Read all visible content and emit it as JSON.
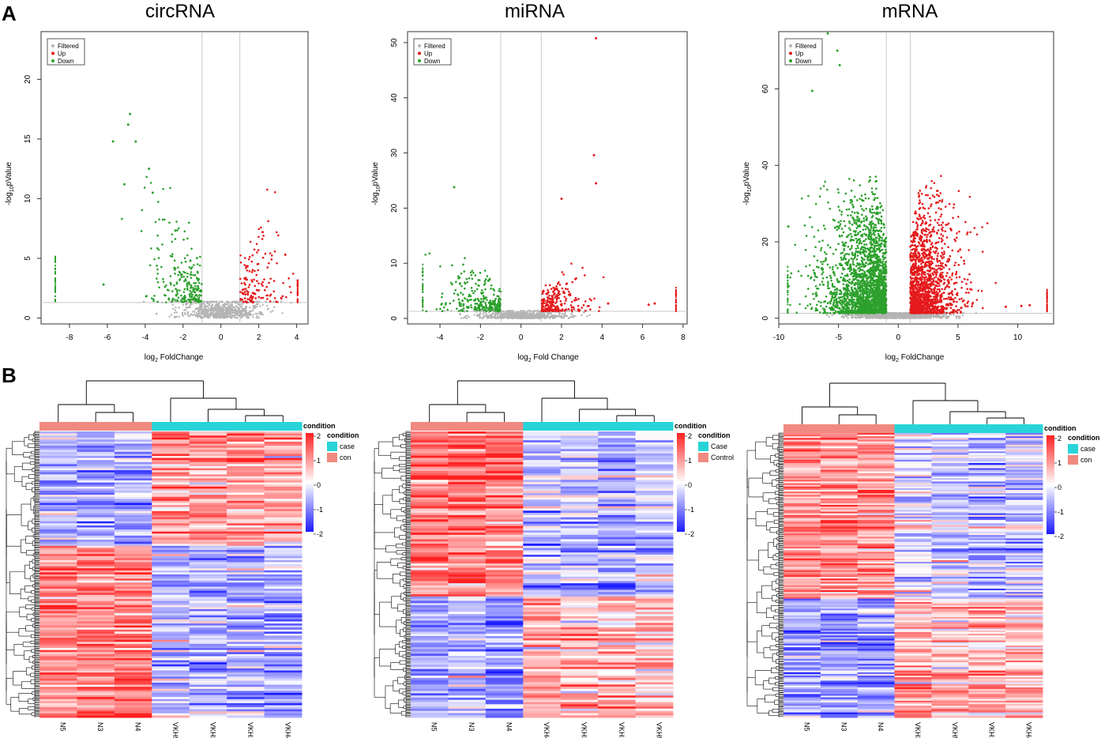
{
  "panel_labels": {
    "a": "A",
    "b": "B"
  },
  "colors": {
    "filtered": "#b4b4b4",
    "up": "#e41a1c",
    "down": "#2ca02c",
    "axis": "#333333",
    "guide": "#c8c8c8",
    "heat_high": "#ff2020",
    "heat_mid": "#ffffff",
    "heat_low": "#1a1aff",
    "case": "#28d4d8",
    "con": "#f08a80"
  },
  "chart_data": [
    {
      "type": "scatter",
      "panel": "A",
      "title": "circRNA",
      "xlabel_pre": "log",
      "xlabel_sub": "2",
      "xlabel_post": " FoldChange",
      "ylabel_pre": "-log",
      "ylabel_sub": "10",
      "ylabel_post": "pValue",
      "xlim": [
        -9.5,
        4.6
      ],
      "ylim": [
        -0.5,
        24
      ],
      "xticks": [
        -8,
        -6,
        -4,
        -2,
        0,
        2,
        4
      ],
      "yticks": [
        0,
        5,
        10,
        15,
        20
      ],
      "fc_cutoff": [
        -1,
        1
      ],
      "p_cutoff": 1.3,
      "legend": [
        "Filtered",
        "Up",
        "Down"
      ],
      "n_down": 230,
      "n_up": 140,
      "n_filtered": 700,
      "notable_points": [
        [
          -4.8,
          17.1
        ],
        [
          -5.7,
          14.8
        ],
        [
          -4.5,
          14.8
        ],
        [
          -4.9,
          16.2
        ],
        [
          -3.8,
          12.5
        ],
        [
          -3.6,
          10.5
        ],
        [
          -5.1,
          11.2
        ],
        [
          2.2,
          7.2
        ],
        [
          3.4,
          5.3
        ],
        [
          -6.2,
          2.8
        ]
      ]
    },
    {
      "type": "scatter",
      "panel": "A",
      "title": "miRNA",
      "xlabel_pre": "log",
      "xlabel_sub": "2",
      "xlabel_post": " Fold Change",
      "ylabel_pre": "-log",
      "ylabel_sub": "10",
      "ylabel_post": "pValue",
      "xlim": [
        -5.6,
        8.2
      ],
      "ylim": [
        -1,
        52
      ],
      "xticks": [
        -4,
        -2,
        0,
        2,
        4,
        6,
        8
      ],
      "yticks": [
        0,
        10,
        20,
        30,
        40,
        50
      ],
      "fc_cutoff": [
        -1,
        1
      ],
      "p_cutoff": 1.3,
      "legend": [
        "Filtered",
        "Up",
        "Down"
      ],
      "n_down": 260,
      "n_up": 230,
      "n_filtered": 700,
      "notable_points": [
        [
          3.7,
          50.8
        ],
        [
          3.6,
          29.6
        ],
        [
          3.7,
          24.5
        ],
        [
          2.0,
          21.7
        ],
        [
          -3.3,
          23.8
        ],
        [
          4.3,
          2.7
        ],
        [
          6.3,
          2.5
        ],
        [
          6.6,
          2.7
        ]
      ]
    },
    {
      "type": "scatter",
      "panel": "A",
      "title": "mRNA",
      "xlabel_pre": "log",
      "xlabel_sub": "2",
      "xlabel_post": " FoldChange",
      "ylabel_pre": "-log",
      "ylabel_sub": "10",
      "ylabel_post": "pValue",
      "xlim": [
        -10,
        13
      ],
      "ylim": [
        -1.5,
        75
      ],
      "xticks": [
        -10,
        -5,
        0,
        5,
        10
      ],
      "yticks": [
        0,
        20,
        40,
        60
      ],
      "fc_cutoff": [
        -1,
        1
      ],
      "p_cutoff": 1.3,
      "legend": [
        "Filtered",
        "Up",
        "Down"
      ],
      "n_down": 2200,
      "n_up": 1500,
      "n_filtered": 1500,
      "notable_points": [
        [
          -5.9,
          74.5
        ],
        [
          -5.1,
          70.0
        ],
        [
          -9.2,
          24.0
        ],
        [
          -4.9,
          66.2
        ],
        [
          -7.2,
          59.5
        ],
        [
          3.4,
          32.0
        ],
        [
          9.0,
          3.0
        ],
        [
          10.3,
          3.2
        ],
        [
          11.0,
          3.4
        ]
      ]
    },
    {
      "type": "heatmap",
      "panel": "B",
      "columns": [
        "N5",
        "N3",
        "N4",
        "VKH5",
        "VKH3",
        "VKH1",
        "VKH4"
      ],
      "column_groups": [
        "con",
        "con",
        "con",
        "case",
        "case",
        "case",
        "case"
      ],
      "annotation_title": "condition",
      "legend_title": "condition",
      "legend_labels": [
        "case",
        "con"
      ],
      "legend_colors": [
        "#28d4d8",
        "#f08a80"
      ],
      "scale_ticks": [
        2,
        1,
        0,
        -1,
        -2
      ],
      "n_rows": 140,
      "blocks": [
        {
          "frac": 0.4,
          "values": [
            -0.6,
            -0.8,
            -0.7,
            0.9,
            0.8,
            0.9,
            0.7
          ]
        },
        {
          "frac": 0.6,
          "values": [
            1.1,
            1.1,
            1.3,
            -0.5,
            -0.6,
            -0.6,
            -0.6
          ]
        }
      ]
    },
    {
      "type": "heatmap",
      "panel": "B",
      "columns": [
        "N5",
        "N3",
        "N4",
        "VKH4",
        "VKH3",
        "VKH1",
        "VKH5"
      ],
      "column_groups": [
        "con",
        "con",
        "con",
        "case",
        "case",
        "case",
        "case"
      ],
      "annotation_title": "condition",
      "legend_title": "condition",
      "legend_labels": [
        "Case",
        "Control"
      ],
      "legend_colors": [
        "#28d4d8",
        "#f08a80"
      ],
      "scale_ticks": [
        2,
        1,
        0,
        -1,
        -2
      ],
      "n_rows": 130,
      "blocks": [
        {
          "frac": 0.58,
          "values": [
            1.1,
            1.2,
            1.1,
            -0.6,
            -0.5,
            -0.8,
            -0.6
          ]
        },
        {
          "frac": 0.42,
          "values": [
            -0.8,
            -0.6,
            -0.9,
            0.8,
            0.6,
            0.7,
            0.6
          ]
        }
      ]
    },
    {
      "type": "heatmap",
      "panel": "B",
      "columns": [
        "N5",
        "N3",
        "N4",
        "VKH3",
        "VKH5",
        "VKH1",
        "VKH4"
      ],
      "column_groups": [
        "con",
        "con",
        "con",
        "case",
        "case",
        "case",
        "case"
      ],
      "annotation_title": "condition",
      "legend_title": "condition",
      "legend_labels": [
        "case",
        "con"
      ],
      "legend_colors": [
        "#28d4d8",
        "#f08a80"
      ],
      "scale_ticks": [
        2,
        1,
        0,
        -1,
        -2
      ],
      "n_rows": 170,
      "blocks": [
        {
          "frac": 0.58,
          "values": [
            0.9,
            0.9,
            0.9,
            -0.3,
            -0.5,
            -0.7,
            -0.6
          ]
        },
        {
          "frac": 0.42,
          "values": [
            -0.8,
            -0.9,
            -0.9,
            0.7,
            0.5,
            0.6,
            0.6
          ]
        }
      ]
    }
  ]
}
